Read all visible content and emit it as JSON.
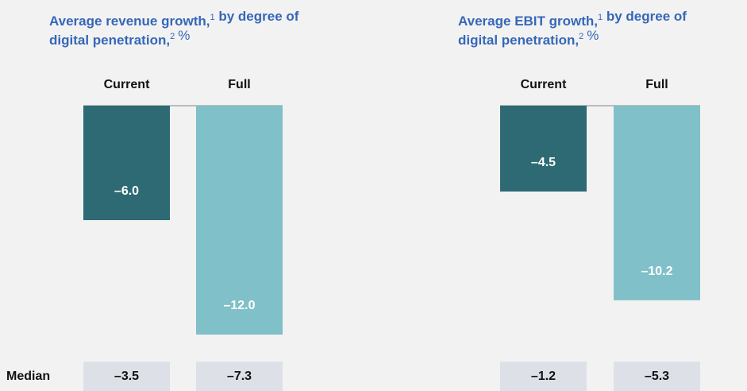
{
  "chart_data": [
    {
      "type": "bar",
      "title_lines": [
        [
          {
            "text": "Average revenue growth,",
            "sup": "1"
          },
          {
            "text": " by degree of"
          }
        ],
        [
          {
            "text": "digital penetration,",
            "sup": "2"
          }
        ]
      ],
      "unit": "%",
      "categories": [
        "Current",
        "Full"
      ],
      "values": [
        -6.0,
        -12.0
      ],
      "value_labels": [
        "–6.0",
        "–12.0"
      ],
      "colors": [
        "#2e6a74",
        "#80c0c8"
      ],
      "ylim": [
        -12.5,
        0
      ],
      "median_label": "Median",
      "median_values": [
        -3.5,
        -7.3
      ],
      "median_labels": [
        "–3.5",
        "–7.3"
      ]
    },
    {
      "type": "bar",
      "title_lines": [
        [
          {
            "text": "Average EBIT growth,",
            "sup": "1"
          },
          {
            "text": " by degree of"
          }
        ],
        [
          {
            "text": "digital penetration,",
            "sup": "2"
          }
        ]
      ],
      "unit": "%",
      "categories": [
        "Current",
        "Full"
      ],
      "values": [
        -4.5,
        -10.2
      ],
      "value_labels": [
        "–4.5",
        "–10.2"
      ],
      "colors": [
        "#2e6a74",
        "#80c0c8"
      ],
      "ylim": [
        -12.5,
        0
      ],
      "median_values": [
        -1.2,
        -5.3
      ],
      "median_labels": [
        "–1.2",
        "–5.3"
      ]
    }
  ]
}
